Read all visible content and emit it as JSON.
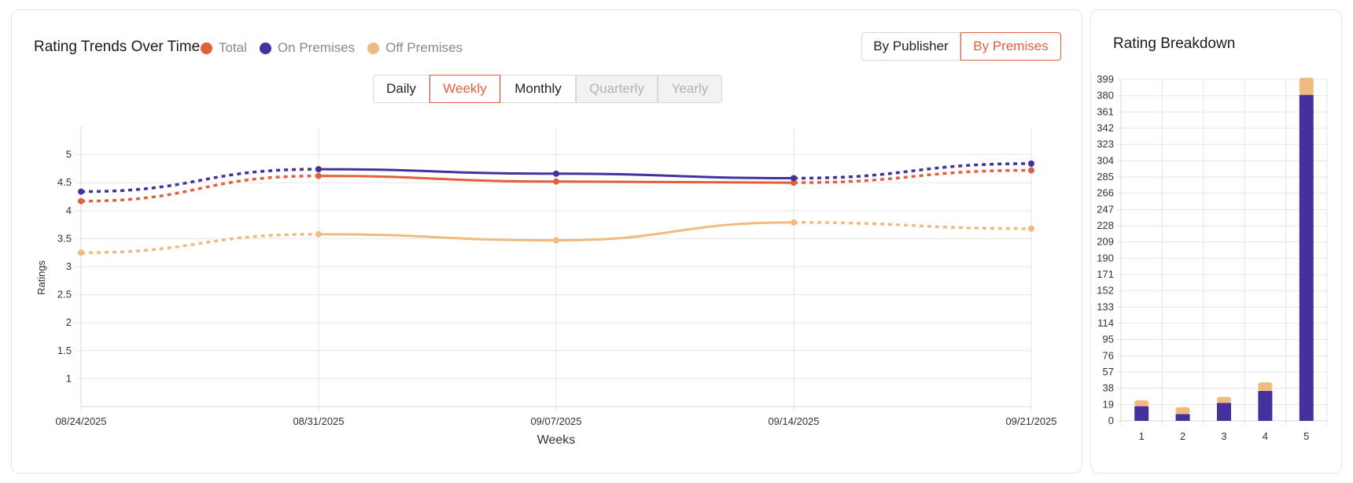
{
  "trends": {
    "title": "Rating Trends Over Time",
    "legend": [
      {
        "label": "Total",
        "color": "#e2603e"
      },
      {
        "label": "On Premises",
        "color": "#45309e"
      },
      {
        "label": "Off Premises",
        "color": "#efbb7e"
      }
    ],
    "group_buttons": {
      "publisher": "By Publisher",
      "premises": "By Premises",
      "active": "premises"
    },
    "period_buttons": {
      "daily": "Daily",
      "weekly": "Weekly",
      "monthly": "Monthly",
      "quarterly": "Quarterly",
      "yearly": "Yearly",
      "active": "weekly",
      "disabled": [
        "quarterly",
        "yearly"
      ]
    }
  },
  "breakdown": {
    "title": "Rating Breakdown"
  },
  "chart_data": [
    {
      "type": "line",
      "xlabel": "Weeks",
      "ylabel": "Ratings",
      "x": [
        "08/24/2025",
        "08/31/2025",
        "09/07/2025",
        "09/14/2025",
        "09/21/2025"
      ],
      "y_ticks": [
        1,
        1.5,
        2,
        2.5,
        3,
        3.5,
        4,
        4.5,
        5
      ],
      "ylim": [
        0.5,
        5.5
      ],
      "grid": true,
      "dashed_segments": "first and last segments are dashed (partial periods)",
      "series": [
        {
          "name": "Total",
          "color": "#e2603e",
          "values": [
            4.17,
            4.62,
            4.52,
            4.5,
            4.72
          ]
        },
        {
          "name": "On Premises",
          "color": "#45309e",
          "values": [
            4.34,
            4.74,
            4.66,
            4.58,
            4.84
          ]
        },
        {
          "name": "Off Premises",
          "color": "#efbb7e",
          "values": [
            3.25,
            3.58,
            3.47,
            3.79,
            3.68
          ]
        }
      ]
    },
    {
      "type": "bar",
      "stacked": true,
      "categories": [
        "1",
        "2",
        "3",
        "4",
        "5"
      ],
      "y_ticks": [
        0,
        19,
        38,
        57,
        76,
        95,
        114,
        133,
        152,
        171,
        190,
        209,
        228,
        247,
        266,
        285,
        304,
        323,
        342,
        361,
        380,
        399
      ],
      "ylim": [
        0,
        399
      ],
      "grid": true,
      "series": [
        {
          "name": "On Premises",
          "color": "#45309e",
          "values": [
            17,
            8,
            21,
            35,
            381
          ]
        },
        {
          "name": "Off Premises",
          "color": "#efbb7e",
          "values": [
            7,
            8,
            7,
            10,
            20
          ]
        }
      ]
    }
  ]
}
